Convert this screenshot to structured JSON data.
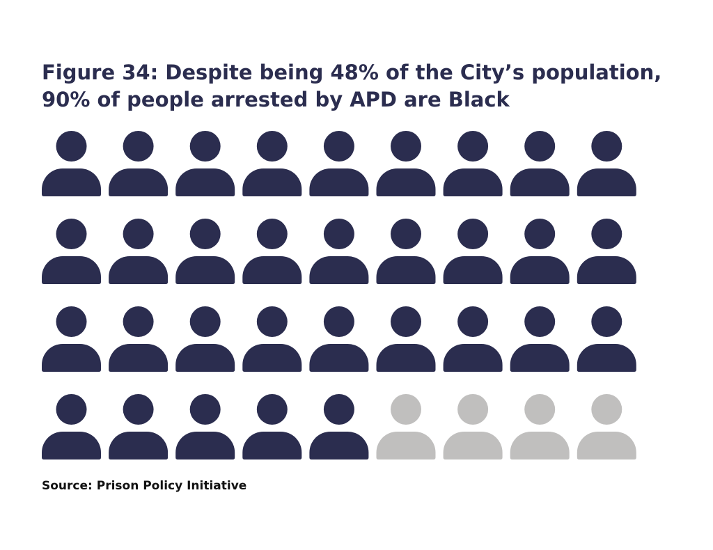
{
  "chart_data": {
    "type": "pictogram",
    "title": [
      "Figure 34: Despite being 48% of the City’s population,",
      "90% of people arrested by APD are Black"
    ],
    "values": [
      32,
      4
    ],
    "colors": [
      "#2b2d4f",
      "#c0bfbe"
    ],
    "columns": 9,
    "source": "Source: Prison Policy Initiative"
  }
}
